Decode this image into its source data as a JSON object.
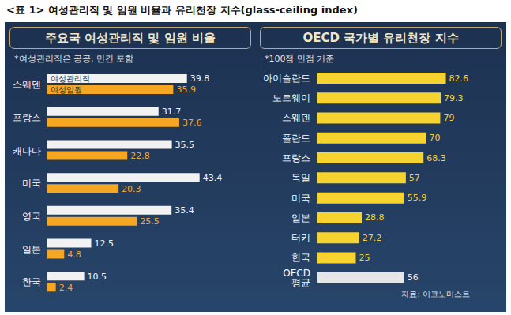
{
  "title": "<표 1> 여성관리직 및 임원 비율과 유리천장 지수(glass-ceiling index)",
  "chart_data": [
    {
      "type": "bar",
      "orientation": "horizontal",
      "title": "주요국 여성관리직 및 임원 비율",
      "subtitle": "*여성관리직은 공공, 민간 포함",
      "categories": [
        "스웨덴",
        "프랑스",
        "캐나다",
        "미국",
        "영국",
        "일본",
        "한국"
      ],
      "series": [
        {
          "name": "여성관리직",
          "color": "#f2f2f2",
          "values": [
            39.8,
            31.7,
            35.5,
            43.4,
            35.4,
            12.5,
            10.5
          ]
        },
        {
          "name": "여성임원",
          "color": "#f5a623",
          "values": [
            35.9,
            37.6,
            22.8,
            20.3,
            25.5,
            4.8,
            2.4
          ]
        }
      ],
      "xlim": [
        0,
        50
      ],
      "data_labels": true,
      "tick_labels": "y"
    },
    {
      "type": "bar",
      "orientation": "horizontal",
      "title": "OECD 국가별 유리천장 지수",
      "subtitle": "*100점 만점 기준",
      "categories": [
        "아이슬란드",
        "노르웨이",
        "스웨덴",
        "폴란드",
        "프랑스",
        "독일",
        "미국",
        "일본",
        "터키",
        "한국",
        "OECD 평균"
      ],
      "values": [
        82.6,
        79.3,
        79.0,
        70.0,
        68.3,
        57.0,
        55.9,
        28.8,
        27.2,
        25.0,
        56.0
      ],
      "colors": [
        "#f7d330",
        "#f7d330",
        "#f7d330",
        "#f7d330",
        "#f7d330",
        "#f7d330",
        "#f7d330",
        "#f7d330",
        "#f7d330",
        "#f7d330",
        "#e6e6e6"
      ],
      "xlim": [
        0,
        100
      ],
      "data_labels": true,
      "tick_labels": "y",
      "annotations": [
        "자료: 이코노미스트"
      ]
    }
  ]
}
